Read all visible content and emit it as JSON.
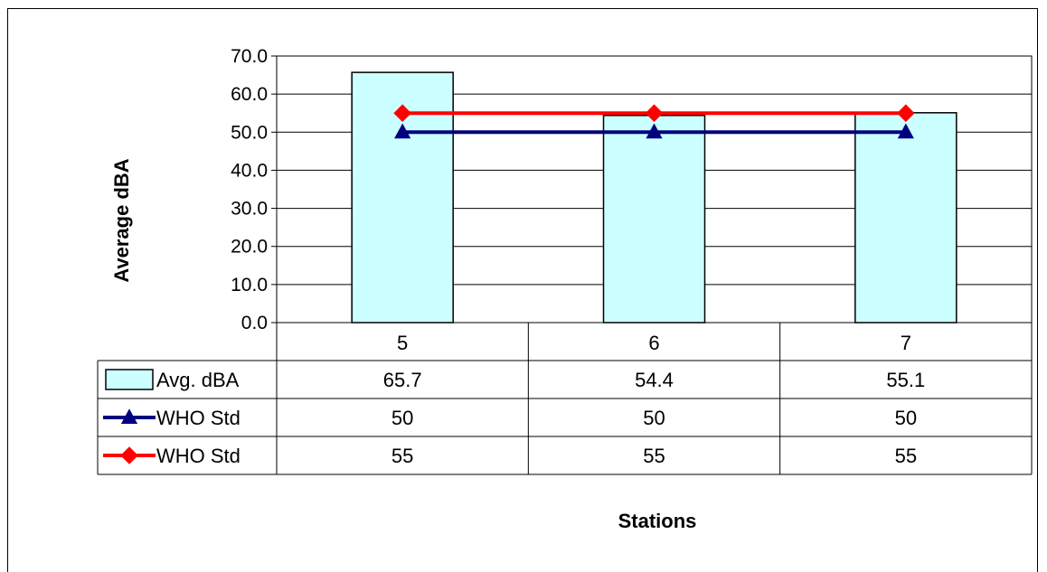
{
  "chart_data": {
    "type": "bar",
    "categories": [
      "5",
      "6",
      "7"
    ],
    "ylabel": "Average dBA",
    "xlabel": "Stations",
    "ylim": [
      0,
      70
    ],
    "ytick_step": 10,
    "ytick_labels": [
      "0.0",
      "10.0",
      "20.0",
      "30.0",
      "40.0",
      "50.0",
      "60.0",
      "70.0"
    ],
    "grid": true,
    "legend": "data-table",
    "series": [
      {
        "name": "Avg. dBA",
        "kind": "bar",
        "color": "#CCFFFF",
        "values": [
          65.7,
          54.4,
          55.1
        ],
        "display": [
          "65.7",
          "54.4",
          "55.1"
        ]
      },
      {
        "name": "WHO Std",
        "kind": "line",
        "marker": "triangle",
        "color": "#000080",
        "values": [
          50,
          50,
          50
        ],
        "display": [
          "50",
          "50",
          "50"
        ]
      },
      {
        "name": "WHO Std",
        "kind": "line",
        "marker": "diamond",
        "color": "#FF0000",
        "values": [
          55,
          55,
          55
        ],
        "display": [
          "55",
          "55",
          "55"
        ]
      }
    ]
  }
}
